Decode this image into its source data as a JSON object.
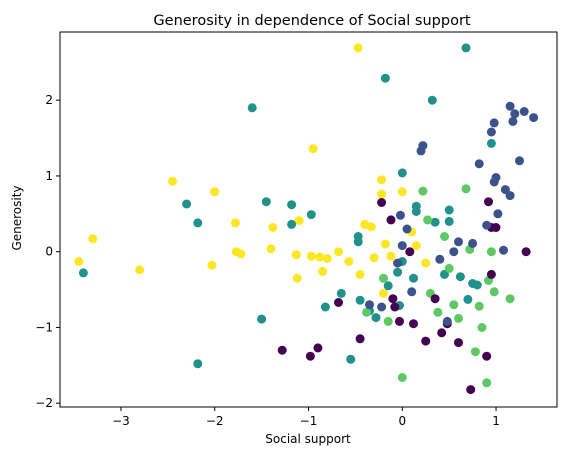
{
  "chart_data": {
    "type": "scatter",
    "title": "Generosity in dependence of Social support",
    "xlabel": "Social support",
    "ylabel": "Generosity",
    "xlim": [
      -3.65,
      1.65
    ],
    "ylim": [
      -2.05,
      2.9
    ],
    "xticks": [
      -3,
      -2,
      -1,
      0,
      1
    ],
    "yticks": [
      -2,
      -1,
      0,
      1,
      2
    ],
    "grid": false,
    "legend": "none",
    "colors": {
      "dark_purple": "#440154",
      "blue": "#3b528b",
      "teal": "#21918c",
      "green": "#5ec962",
      "yellow": "#fde725"
    },
    "points": [
      {
        "x": -3.45,
        "y": -0.13,
        "c": "yellow"
      },
      {
        "x": -3.3,
        "y": 0.17,
        "c": "yellow"
      },
      {
        "x": -2.8,
        "y": -0.24,
        "c": "yellow"
      },
      {
        "x": -2.45,
        "y": 0.93,
        "c": "yellow"
      },
      {
        "x": -2.0,
        "y": 0.79,
        "c": "yellow"
      },
      {
        "x": -2.03,
        "y": -0.18,
        "c": "yellow"
      },
      {
        "x": -1.78,
        "y": 0.38,
        "c": "yellow"
      },
      {
        "x": -1.77,
        "y": 0.0,
        "c": "yellow"
      },
      {
        "x": -1.72,
        "y": -0.03,
        "c": "yellow"
      },
      {
        "x": -1.38,
        "y": 0.32,
        "c": "yellow"
      },
      {
        "x": -1.4,
        "y": 0.04,
        "c": "yellow"
      },
      {
        "x": -1.1,
        "y": 0.41,
        "c": "yellow"
      },
      {
        "x": -1.13,
        "y": -0.04,
        "c": "yellow"
      },
      {
        "x": -1.12,
        "y": -0.35,
        "c": "yellow"
      },
      {
        "x": -0.95,
        "y": 1.36,
        "c": "yellow"
      },
      {
        "x": -0.97,
        "y": -0.06,
        "c": "yellow"
      },
      {
        "x": -0.88,
        "y": -0.07,
        "c": "yellow"
      },
      {
        "x": -0.85,
        "y": -0.26,
        "c": "yellow"
      },
      {
        "x": -0.8,
        "y": -0.09,
        "c": "yellow"
      },
      {
        "x": -0.68,
        "y": 0.0,
        "c": "yellow"
      },
      {
        "x": -0.57,
        "y": -0.13,
        "c": "yellow"
      },
      {
        "x": -0.47,
        "y": 2.69,
        "c": "yellow"
      },
      {
        "x": -0.45,
        "y": -0.3,
        "c": "yellow"
      },
      {
        "x": -0.4,
        "y": 0.36,
        "c": "yellow"
      },
      {
        "x": -0.33,
        "y": 0.33,
        "c": "yellow"
      },
      {
        "x": -0.3,
        "y": -0.08,
        "c": "yellow"
      },
      {
        "x": -0.22,
        "y": 0.95,
        "c": "yellow"
      },
      {
        "x": -0.22,
        "y": 0.76,
        "c": "yellow"
      },
      {
        "x": -0.18,
        "y": 0.1,
        "c": "yellow"
      },
      {
        "x": -0.12,
        "y": -0.06,
        "c": "yellow"
      },
      {
        "x": 0.0,
        "y": 0.79,
        "c": "yellow"
      },
      {
        "x": 0.1,
        "y": 0.26,
        "c": "yellow"
      },
      {
        "x": 0.15,
        "y": 0.08,
        "c": "yellow"
      },
      {
        "x": 0.25,
        "y": -0.15,
        "c": "yellow"
      },
      {
        "x": -0.2,
        "y": -0.55,
        "c": "yellow"
      },
      {
        "x": -1.6,
        "y": 1.9,
        "c": "teal"
      },
      {
        "x": -1.45,
        "y": 0.66,
        "c": "teal"
      },
      {
        "x": -2.3,
        "y": 0.63,
        "c": "teal"
      },
      {
        "x": -2.18,
        "y": 0.38,
        "c": "teal"
      },
      {
        "x": -1.18,
        "y": 0.62,
        "c": "teal"
      },
      {
        "x": -1.18,
        "y": 0.36,
        "c": "teal"
      },
      {
        "x": -0.97,
        "y": 0.49,
        "c": "teal"
      },
      {
        "x": -3.4,
        "y": -0.28,
        "c": "teal"
      },
      {
        "x": -2.18,
        "y": -1.48,
        "c": "teal"
      },
      {
        "x": -1.5,
        "y": -0.89,
        "c": "teal"
      },
      {
        "x": -0.82,
        "y": -0.73,
        "c": "teal"
      },
      {
        "x": -0.65,
        "y": -0.55,
        "c": "teal"
      },
      {
        "x": -0.55,
        "y": -1.42,
        "c": "teal"
      },
      {
        "x": -0.47,
        "y": 0.2,
        "c": "teal"
      },
      {
        "x": -0.47,
        "y": 0.13,
        "c": "teal"
      },
      {
        "x": -0.45,
        "y": -0.64,
        "c": "teal"
      },
      {
        "x": -0.35,
        "y": -0.78,
        "c": "teal"
      },
      {
        "x": -0.28,
        "y": -0.87,
        "c": "teal"
      },
      {
        "x": -0.18,
        "y": 2.29,
        "c": "teal"
      },
      {
        "x": -0.15,
        "y": -0.45,
        "c": "teal"
      },
      {
        "x": -0.05,
        "y": -0.27,
        "c": "teal"
      },
      {
        "x": -0.03,
        "y": -0.71,
        "c": "teal"
      },
      {
        "x": 0.0,
        "y": 1.04,
        "c": "teal"
      },
      {
        "x": 0.0,
        "y": -0.13,
        "c": "teal"
      },
      {
        "x": 0.12,
        "y": -0.35,
        "c": "teal"
      },
      {
        "x": 0.15,
        "y": 0.6,
        "c": "teal"
      },
      {
        "x": 0.15,
        "y": 0.53,
        "c": "teal"
      },
      {
        "x": 0.32,
        "y": 2.0,
        "c": "teal"
      },
      {
        "x": 0.35,
        "y": 0.39,
        "c": "teal"
      },
      {
        "x": 0.5,
        "y": 0.55,
        "c": "teal"
      },
      {
        "x": 0.5,
        "y": 0.4,
        "c": "teal"
      },
      {
        "x": 0.62,
        "y": -0.33,
        "c": "teal"
      },
      {
        "x": 0.68,
        "y": 2.69,
        "c": "teal"
      },
      {
        "x": 0.7,
        "y": -0.63,
        "c": "teal"
      },
      {
        "x": 0.75,
        "y": -0.42,
        "c": "teal"
      },
      {
        "x": 0.8,
        "y": -0.44,
        "c": "teal"
      },
      {
        "x": 0.95,
        "y": 1.43,
        "c": "teal"
      },
      {
        "x": 0.45,
        "y": -0.3,
        "c": "teal"
      },
      {
        "x": -0.2,
        "y": -0.35,
        "c": "green"
      },
      {
        "x": -0.15,
        "y": -0.92,
        "c": "green"
      },
      {
        "x": -0.38,
        "y": -0.8,
        "c": "green"
      },
      {
        "x": 0.0,
        "y": -1.66,
        "c": "green"
      },
      {
        "x": 0.22,
        "y": 0.8,
        "c": "green"
      },
      {
        "x": 0.27,
        "y": 0.42,
        "c": "green"
      },
      {
        "x": 0.45,
        "y": 0.2,
        "c": "green"
      },
      {
        "x": 0.5,
        "y": -0.22,
        "c": "green"
      },
      {
        "x": 0.55,
        "y": -0.7,
        "c": "green"
      },
      {
        "x": 0.6,
        "y": -0.88,
        "c": "green"
      },
      {
        "x": 0.68,
        "y": 0.83,
        "c": "green"
      },
      {
        "x": 0.72,
        "y": 0.03,
        "c": "green"
      },
      {
        "x": 0.78,
        "y": -1.32,
        "c": "green"
      },
      {
        "x": 0.82,
        "y": -0.72,
        "c": "green"
      },
      {
        "x": 0.85,
        "y": -1.0,
        "c": "green"
      },
      {
        "x": 0.9,
        "y": -1.73,
        "c": "green"
      },
      {
        "x": 0.92,
        "y": -0.38,
        "c": "green"
      },
      {
        "x": 0.95,
        "y": 0.0,
        "c": "green"
      },
      {
        "x": 0.98,
        "y": -0.53,
        "c": "green"
      },
      {
        "x": 1.15,
        "y": -0.62,
        "c": "green"
      },
      {
        "x": 0.38,
        "y": -0.8,
        "c": "green"
      },
      {
        "x": 0.3,
        "y": -0.55,
        "c": "green"
      },
      {
        "x": -1.28,
        "y": -1.3,
        "c": "dark_purple"
      },
      {
        "x": -0.98,
        "y": -1.38,
        "c": "dark_purple"
      },
      {
        "x": -0.9,
        "y": -1.27,
        "c": "dark_purple"
      },
      {
        "x": -0.68,
        "y": -0.67,
        "c": "dark_purple"
      },
      {
        "x": -0.45,
        "y": -1.15,
        "c": "dark_purple"
      },
      {
        "x": -0.22,
        "y": 0.65,
        "c": "dark_purple"
      },
      {
        "x": -0.12,
        "y": 0.42,
        "c": "dark_purple"
      },
      {
        "x": -0.08,
        "y": -0.73,
        "c": "dark_purple"
      },
      {
        "x": -0.03,
        "y": -0.92,
        "c": "dark_purple"
      },
      {
        "x": 0.08,
        "y": 0.0,
        "c": "dark_purple"
      },
      {
        "x": 0.12,
        "y": -0.95,
        "c": "dark_purple"
      },
      {
        "x": 0.25,
        "y": -1.18,
        "c": "dark_purple"
      },
      {
        "x": 0.35,
        "y": -0.62,
        "c": "dark_purple"
      },
      {
        "x": 0.42,
        "y": -1.07,
        "c": "dark_purple"
      },
      {
        "x": 0.48,
        "y": -0.95,
        "c": "dark_purple"
      },
      {
        "x": 0.6,
        "y": -1.2,
        "c": "dark_purple"
      },
      {
        "x": 0.73,
        "y": -1.82,
        "c": "dark_purple"
      },
      {
        "x": 0.9,
        "y": -1.38,
        "c": "dark_purple"
      },
      {
        "x": 0.92,
        "y": 0.66,
        "c": "dark_purple"
      },
      {
        "x": 0.95,
        "y": -0.3,
        "c": "dark_purple"
      },
      {
        "x": 0.95,
        "y": 0.32,
        "c": "dark_purple"
      },
      {
        "x": 1.0,
        "y": 0.32,
        "c": "dark_purple"
      },
      {
        "x": 1.32,
        "y": 0.0,
        "c": "dark_purple"
      },
      {
        "x": -0.1,
        "y": -0.62,
        "c": "dark_purple"
      },
      {
        "x": 0.2,
        "y": 1.33,
        "c": "blue"
      },
      {
        "x": 0.22,
        "y": 1.4,
        "c": "blue"
      },
      {
        "x": 0.05,
        "y": 0.3,
        "c": "blue"
      },
      {
        "x": 0.0,
        "y": 0.08,
        "c": "blue"
      },
      {
        "x": -0.05,
        "y": -0.15,
        "c": "blue"
      },
      {
        "x": -0.22,
        "y": -0.73,
        "c": "blue"
      },
      {
        "x": -0.02,
        "y": 0.48,
        "c": "blue"
      },
      {
        "x": 0.1,
        "y": -0.53,
        "c": "blue"
      },
      {
        "x": 0.4,
        "y": -0.1,
        "c": "blue"
      },
      {
        "x": 0.55,
        "y": 0.0,
        "c": "blue"
      },
      {
        "x": 0.6,
        "y": 0.13,
        "c": "blue"
      },
      {
        "x": 0.75,
        "y": 0.11,
        "c": "blue"
      },
      {
        "x": 0.82,
        "y": 1.16,
        "c": "blue"
      },
      {
        "x": 0.9,
        "y": 0.35,
        "c": "blue"
      },
      {
        "x": 0.95,
        "y": 1.58,
        "c": "blue"
      },
      {
        "x": 0.98,
        "y": 1.7,
        "c": "blue"
      },
      {
        "x": 0.98,
        "y": 0.92,
        "c": "blue"
      },
      {
        "x": 1.0,
        "y": 0.98,
        "c": "blue"
      },
      {
        "x": 1.02,
        "y": 0.5,
        "c": "blue"
      },
      {
        "x": 1.08,
        "y": 0.02,
        "c": "blue"
      },
      {
        "x": 1.1,
        "y": 0.82,
        "c": "blue"
      },
      {
        "x": 1.15,
        "y": 0.74,
        "c": "blue"
      },
      {
        "x": 1.15,
        "y": 1.92,
        "c": "blue"
      },
      {
        "x": 1.18,
        "y": 1.72,
        "c": "blue"
      },
      {
        "x": 1.2,
        "y": 1.82,
        "c": "blue"
      },
      {
        "x": 1.25,
        "y": 1.2,
        "c": "blue"
      },
      {
        "x": 1.3,
        "y": 1.85,
        "c": "blue"
      },
      {
        "x": 1.4,
        "y": 1.77,
        "c": "blue"
      },
      {
        "x": 0.48,
        "y": -0.92,
        "c": "blue"
      },
      {
        "x": -0.35,
        "y": -0.7,
        "c": "blue"
      }
    ]
  }
}
